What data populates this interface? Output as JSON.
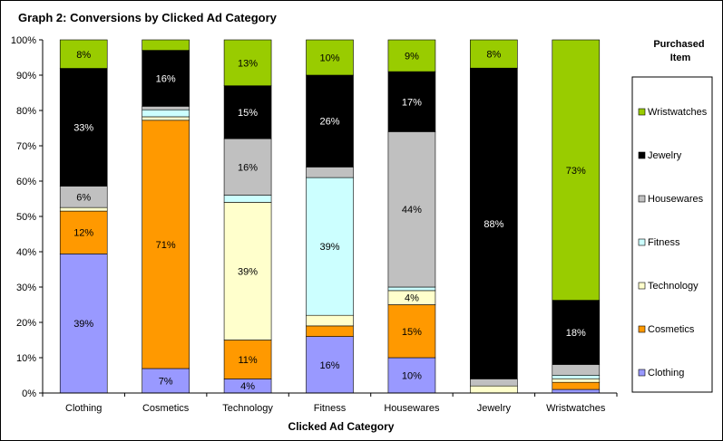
{
  "chart_data": {
    "type": "bar",
    "stacked": true,
    "percent_stacked": true,
    "title": "Graph 2: Conversions by Clicked Ad Category",
    "xlabel": "Clicked Ad Category",
    "ylabel": "",
    "ylim": [
      0,
      100
    ],
    "yticks": [
      "0%",
      "10%",
      "20%",
      "30%",
      "40%",
      "50%",
      "60%",
      "70%",
      "80%",
      "90%",
      "100%"
    ],
    "grid": false,
    "legend_title": "Purchased Item",
    "legend_position": "right",
    "categories": [
      "Clothing",
      "Cosmetics",
      "Technology",
      "Fitness",
      "Housewares",
      "Jewelry",
      "Wristwatches"
    ],
    "series": [
      {
        "name": "Clothing",
        "color": "#9999ff",
        "values": [
          39,
          7,
          4,
          16,
          10,
          0,
          1
        ],
        "labels": [
          "39%",
          "7%",
          "4%",
          "16%",
          "10%",
          "",
          ""
        ]
      },
      {
        "name": "Cosmetics",
        "color": "#ff9900",
        "values": [
          12,
          71,
          11,
          3,
          15,
          0,
          2
        ],
        "labels": [
          "12%",
          "71%",
          "11%",
          "",
          "15%",
          "",
          ""
        ]
      },
      {
        "name": "Technology",
        "color": "#ffffcc",
        "values": [
          1,
          1,
          39,
          3,
          4,
          2,
          1
        ],
        "labels": [
          "",
          "",
          "39%",
          "",
          "4%",
          "",
          ""
        ]
      },
      {
        "name": "Fitness",
        "color": "#ccffff",
        "values": [
          0,
          2,
          2,
          39,
          1,
          0,
          1
        ],
        "labels": [
          "",
          "",
          "",
          "39%",
          "",
          "",
          ""
        ]
      },
      {
        "name": "Housewares",
        "color": "#c0c0c0",
        "values": [
          6,
          1,
          16,
          3,
          44,
          2,
          3
        ],
        "labels": [
          "6%",
          "",
          "16%",
          "",
          "44%",
          "",
          ""
        ]
      },
      {
        "name": "Jewelry",
        "color": "#000000",
        "values": [
          33,
          16,
          15,
          26,
          17,
          88,
          18
        ],
        "labels": [
          "33%",
          "16%",
          "15%",
          "26%",
          "17%",
          "88%",
          "18%"
        ]
      },
      {
        "name": "Wristwatches",
        "color": "#99cc00",
        "values": [
          8,
          3,
          13,
          10,
          9,
          8,
          73
        ],
        "labels": [
          "8%",
          "",
          "13%",
          "10%",
          "9%",
          "8%",
          "73%"
        ]
      }
    ]
  }
}
